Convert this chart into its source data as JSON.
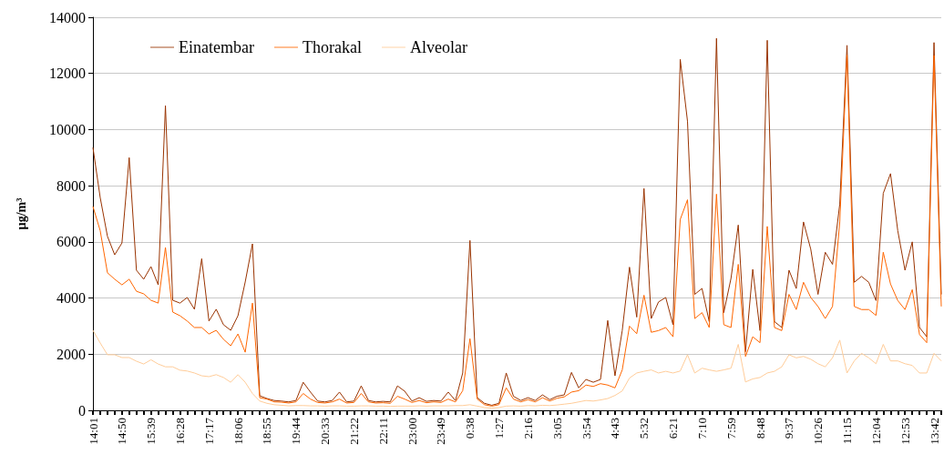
{
  "chart_data": {
    "type": "line",
    "ylabel": "µg/m³",
    "categories": [
      "14:01",
      null,
      null,
      null,
      "14:50",
      null,
      null,
      null,
      "15:39",
      null,
      null,
      null,
      "16:28",
      null,
      null,
      null,
      "17:17",
      null,
      null,
      null,
      "18:06",
      null,
      null,
      null,
      "18:55",
      null,
      null,
      null,
      "19:44",
      null,
      null,
      null,
      "20:33",
      null,
      null,
      null,
      "21:22",
      null,
      null,
      null,
      "22:11",
      null,
      null,
      null,
      "23:00",
      null,
      null,
      null,
      "23:49",
      null,
      null,
      null,
      "0:38",
      null,
      null,
      null,
      "1:27",
      null,
      null,
      null,
      "2:16",
      null,
      null,
      null,
      "3:05",
      null,
      null,
      null,
      "3:54",
      null,
      null,
      null,
      "4:43",
      null,
      null,
      null,
      "5:32",
      null,
      null,
      null,
      "6:21",
      null,
      null,
      null,
      "7:10",
      null,
      null,
      null,
      "7:59",
      null,
      null,
      null,
      "8:48",
      null,
      null,
      null,
      "9:37",
      null,
      null,
      null,
      "10:26",
      null,
      null,
      null,
      "11:15",
      null,
      null,
      null,
      "12:04",
      null,
      null,
      null,
      "12:53",
      null,
      null,
      null,
      "13:42",
      null
    ],
    "series": [
      {
        "name": "Einatembar",
        "color": "#993300",
        "values": [
          9360,
          7580,
          6200,
          5540,
          5960,
          9000,
          4990,
          4670,
          5120,
          4470,
          10850,
          3920,
          3820,
          4020,
          3600,
          5400,
          3180,
          3600,
          3050,
          2850,
          3370,
          4570,
          5930,
          520,
          420,
          350,
          330,
          300,
          350,
          1000,
          650,
          330,
          300,
          350,
          650,
          300,
          330,
          870,
          350,
          300,
          320,
          300,
          870,
          680,
          330,
          450,
          320,
          350,
          330,
          650,
          350,
          1330,
          6050,
          450,
          250,
          180,
          250,
          1330,
          500,
          350,
          450,
          350,
          550,
          380,
          500,
          550,
          1350,
          800,
          1100,
          1000,
          1100,
          3200,
          1230,
          2840,
          5100,
          3320,
          7900,
          3270,
          3860,
          4020,
          3050,
          12500,
          10300,
          4130,
          4340,
          3160,
          13250,
          3480,
          4700,
          6600,
          2090,
          5020,
          2840,
          13180,
          3160,
          2950,
          4990,
          4340,
          6710,
          5740,
          4130,
          5630,
          5200,
          7350,
          13000,
          4560,
          4770,
          4560,
          3910,
          7730,
          8430,
          6400,
          4990,
          6000,
          2950,
          2620,
          13100,
          4130
        ]
      },
      {
        "name": "Thorakal",
        "color": "#ff6600",
        "values": [
          7260,
          6400,
          4900,
          4670,
          4470,
          4670,
          4240,
          4150,
          3920,
          3820,
          5800,
          3500,
          3370,
          3180,
          2950,
          2950,
          2720,
          2850,
          2530,
          2300,
          2720,
          2070,
          3820,
          450,
          400,
          300,
          290,
          260,
          300,
          600,
          400,
          280,
          260,
          300,
          400,
          260,
          280,
          600,
          300,
          260,
          270,
          250,
          500,
          400,
          280,
          350,
          270,
          300,
          280,
          400,
          300,
          700,
          2550,
          400,
          200,
          150,
          200,
          800,
          400,
          300,
          380,
          300,
          450,
          330,
          430,
          480,
          650,
          700,
          900,
          850,
          950,
          900,
          800,
          1440,
          3000,
          2730,
          4100,
          2780,
          2840,
          2950,
          2620,
          6800,
          7500,
          3270,
          3480,
          2950,
          7700,
          3050,
          2950,
          5200,
          1920,
          2620,
          2410,
          6550,
          2950,
          2840,
          4130,
          3590,
          4560,
          4020,
          3700,
          3270,
          3700,
          6710,
          12650,
          3700,
          3590,
          3590,
          3380,
          5630,
          4500,
          3910,
          3590,
          4300,
          2700,
          2410,
          12640,
          3700
        ]
      },
      {
        "name": "Alveolar",
        "color": "#ffcc99",
        "values": [
          2850,
          2400,
          1980,
          1980,
          1880,
          1880,
          1750,
          1650,
          1800,
          1650,
          1550,
          1550,
          1430,
          1400,
          1330,
          1230,
          1200,
          1270,
          1170,
          1000,
          1270,
          1000,
          600,
          330,
          250,
          200,
          180,
          160,
          170,
          170,
          160,
          160,
          150,
          160,
          160,
          150,
          150,
          160,
          160,
          150,
          150,
          140,
          150,
          150,
          150,
          160,
          150,
          160,
          160,
          160,
          170,
          170,
          200,
          150,
          100,
          80,
          100,
          150,
          160,
          150,
          170,
          160,
          180,
          170,
          190,
          220,
          250,
          300,
          350,
          330,
          370,
          420,
          530,
          690,
          1150,
          1330,
          1390,
          1440,
          1330,
          1390,
          1330,
          1400,
          1980,
          1330,
          1500,
          1440,
          1390,
          1440,
          1500,
          2350,
          1010,
          1120,
          1170,
          1330,
          1390,
          1550,
          1980,
          1870,
          1920,
          1820,
          1660,
          1550,
          1870,
          2500,
          1330,
          1760,
          2030,
          1870,
          1660,
          2350,
          1760,
          1760,
          1660,
          1600,
          1330,
          1330,
          2030,
          1760
        ]
      }
    ],
    "ylim": [
      0,
      14000
    ],
    "yticks": [
      0,
      2000,
      4000,
      6000,
      8000,
      10000,
      12000,
      14000
    ],
    "grid": "y",
    "legend": "top left",
    "marker": "none",
    "line_style": "solid"
  }
}
